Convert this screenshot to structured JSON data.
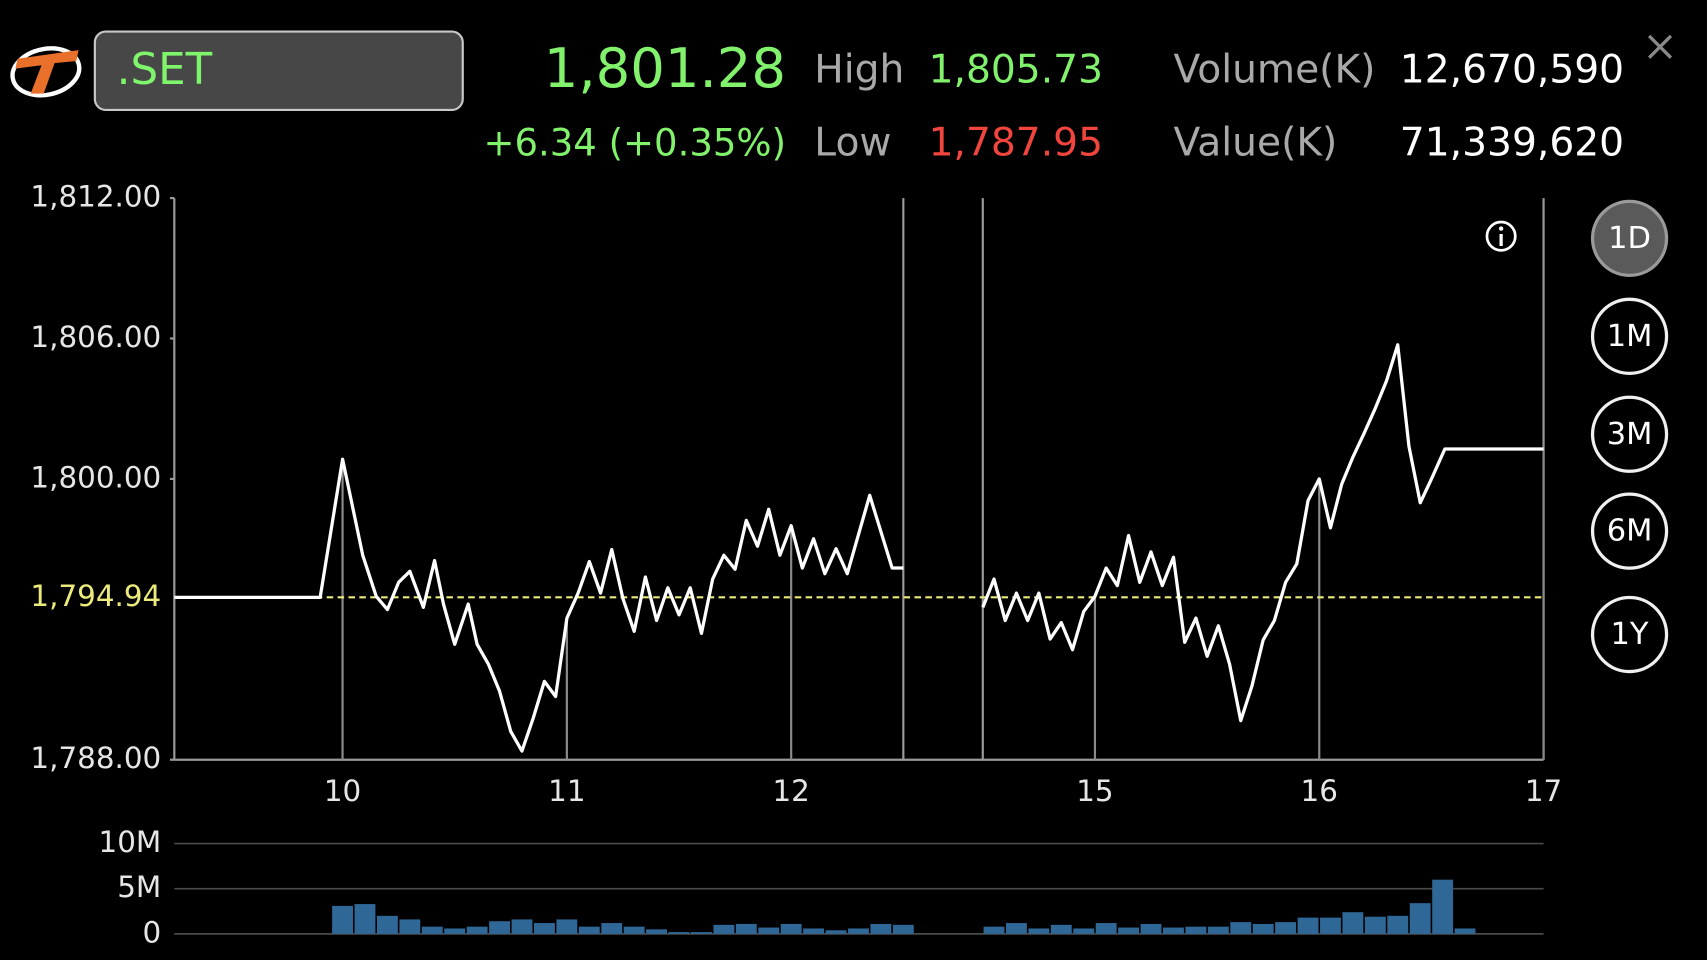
{
  "header": {
    "symbol": ".SET",
    "last": "1,801.28",
    "change": "+6.34 (+0.35%)",
    "high_label": "High",
    "high": "1,805.73",
    "low_label": "Low",
    "low": "1,787.95",
    "volume_label": "Volume(K)",
    "volume": "12,670,590",
    "value_label": "Value(K)",
    "value": "71,339,620"
  },
  "periods": [
    {
      "label": "1D",
      "selected": true
    },
    {
      "label": "1M",
      "selected": false
    },
    {
      "label": "3M",
      "selected": false
    },
    {
      "label": "6M",
      "selected": false
    },
    {
      "label": "1Y",
      "selected": false
    }
  ],
  "chart_data": [
    {
      "type": "line",
      "color": "#ffffff",
      "x": [
        9.25,
        9.9,
        10,
        10.09,
        10.15,
        10.2,
        10.25,
        10.3,
        10.36,
        10.41,
        10.45,
        10.5,
        10.56,
        10.6,
        10.65,
        10.7,
        10.75,
        10.8,
        10.85,
        10.9,
        10.95,
        11,
        11.05,
        11.1,
        11.15,
        11.2,
        11.25,
        11.3,
        11.35,
        11.4,
        11.45,
        11.5,
        11.55,
        11.6,
        11.65,
        11.7,
        11.75,
        11.8,
        11.85,
        11.9,
        11.95,
        12,
        12.05,
        12.1,
        12.15,
        12.2,
        12.25,
        12.35,
        12.45,
        12.5,
        13.5,
        14.5,
        14.55,
        14.6,
        14.65,
        14.7,
        14.75,
        14.8,
        14.85,
        14.9,
        14.95,
        15,
        15.05,
        15.1,
        15.15,
        15.2,
        15.25,
        15.3,
        15.35,
        15.4,
        15.45,
        15.5,
        15.55,
        15.6,
        15.65,
        15.7,
        15.75,
        15.8,
        15.85,
        15.9,
        15.95,
        16,
        16.05,
        16.1,
        16.15,
        16.2,
        16.25,
        16.3,
        16.35,
        16.4,
        16.45,
        16.5,
        16.56,
        17
      ],
      "values": [
        1794.94,
        1794.94,
        1800.84,
        1796.74,
        1794.98,
        1794.42,
        1795.58,
        1796.05,
        1794.51,
        1796.51,
        1794.65,
        1792.93,
        1794.65,
        1792.93,
        1792.09,
        1790.93,
        1789.21,
        1788.37,
        1789.77,
        1791.35,
        1790.7,
        1794.05,
        1795.12,
        1796.47,
        1795.12,
        1796.98,
        1794.88,
        1793.49,
        1795.81,
        1793.95,
        1795.35,
        1794.19,
        1795.35,
        1793.4,
        1795.72,
        1796.74,
        1796.14,
        1798.23,
        1797.12,
        1798.7,
        1796.74,
        1798.0,
        1796.19,
        1797.44,
        1795.95,
        1797.02,
        1795.95,
        1799.3,
        1796.19,
        1796.19,
        null,
        1794.51,
        1795.72,
        1793.95,
        1795.12,
        1793.95,
        1795.12,
        1793.16,
        1793.86,
        1792.7,
        1794.33,
        1794.98,
        1796.19,
        1795.44,
        1797.58,
        1795.58,
        1796.88,
        1795.44,
        1796.65,
        1793.02,
        1794.05,
        1792.42,
        1793.72,
        1792.09,
        1789.67,
        1791.16,
        1793.12,
        1793.95,
        1795.58,
        1796.37,
        1799.07,
        1800.0,
        1797.91,
        1799.77,
        1800.93,
        1801.95,
        1803.02,
        1804.19,
        1805.73,
        1801.4,
        1798.98,
        1800.0,
        1801.28,
        1801.28
      ],
      "xlim": [
        9.25,
        17
      ],
      "xticks": [
        10,
        11,
        12,
        15,
        16,
        17
      ],
      "xbreaks": [
        [
          12.5,
          14.5
        ]
      ],
      "ylim": [
        1788,
        1812
      ],
      "yticks": [
        {
          "value": 1788,
          "label": "1,788.00"
        },
        {
          "value": 1800,
          "label": "1,800.00"
        },
        {
          "value": 1806,
          "label": "1,806.00"
        },
        {
          "value": 1812,
          "label": "1,812.00"
        }
      ],
      "reference_line": {
        "value": 1794.94,
        "label": "1,794.94",
        "color": "#ecea7a"
      },
      "grid": false
    },
    {
      "type": "bar",
      "color": "#2f6796",
      "x": [
        10,
        10.1,
        10.2,
        10.3,
        10.4,
        10.5,
        10.6,
        10.7,
        10.8,
        10.9,
        11,
        11.1,
        11.2,
        11.3,
        11.4,
        11.5,
        11.6,
        11.7,
        11.8,
        11.9,
        12,
        12.1,
        12.2,
        12.3,
        12.4,
        12.5,
        14.55,
        14.65,
        14.75,
        14.85,
        14.95,
        15.05,
        15.15,
        15.25,
        15.35,
        15.45,
        15.55,
        15.65,
        15.75,
        15.85,
        15.95,
        16.05,
        16.15,
        16.25,
        16.35,
        16.45,
        16.55,
        16.65
      ],
      "values": [
        3100000,
        3300000,
        2000000,
        1600000,
        800000,
        600000,
        800000,
        1400000,
        1600000,
        1200000,
        1600000,
        800000,
        1200000,
        800000,
        500000,
        200000,
        200000,
        1000000,
        1100000,
        700000,
        1100000,
        600000,
        400000,
        600000,
        1100000,
        1000000,
        800000,
        1200000,
        600000,
        1000000,
        600000,
        1200000,
        700000,
        1100000,
        700000,
        800000,
        800000,
        1300000,
        1100000,
        1300000,
        1800000,
        1800000,
        2400000,
        1900000,
        2000000,
        3400000,
        6000000,
        600000
      ],
      "xlim": [
        9.25,
        17
      ],
      "xbreaks": [
        [
          12.5,
          14.5
        ]
      ],
      "ylim": [
        0,
        10000000
      ],
      "yticks": [
        0,
        {
          "value": 5000000,
          "label": "5M"
        },
        {
          "value": 10000000,
          "label": "10M"
        }
      ],
      "grid": true
    }
  ]
}
